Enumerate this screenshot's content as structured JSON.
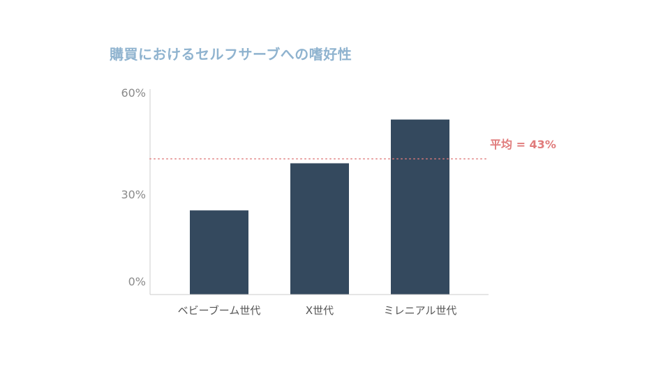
{
  "colors": {
    "title": "#8fb3cf",
    "bar": "#34495e",
    "average_line": "#e07b7b",
    "axis": "#cccccc",
    "tick_text": "#8a8a8a"
  },
  "chart_data": {
    "type": "bar",
    "title": "購買におけるセルフサーブへの嗜好性",
    "categories": [
      "ベビーブーム世代",
      "X世代",
      "ミレニアル世代"
    ],
    "series": [
      {
        "values": [
          25,
          39,
          52
        ]
      }
    ],
    "ylim": [
      0,
      60
    ],
    "yticks": [
      "0%",
      "30%",
      "60%"
    ],
    "ytick_values": [
      0,
      30,
      60
    ],
    "average": {
      "value": 43,
      "label": "平均 = 43%"
    },
    "grid": false,
    "legend": "none"
  }
}
